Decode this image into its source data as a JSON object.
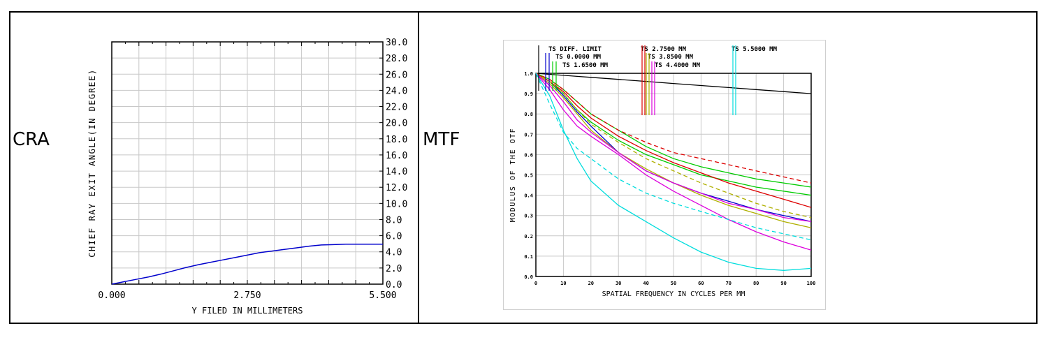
{
  "labels": {
    "cra": "CRA",
    "mtf": "MTF"
  },
  "chart_data": [
    {
      "type": "line",
      "xlabel": "Y FILED IN MILLIMETERS",
      "ylabel": "CHIEF RAY EXIT ANGLE(IN DEGREE)",
      "xlim": [
        0,
        5.5
      ],
      "ylim": [
        0,
        30
      ],
      "x_ticklabels": [
        "0.000",
        "2.750",
        "5.500"
      ],
      "y_ticks": [
        0,
        2,
        4,
        6,
        8,
        10,
        12,
        14,
        16,
        18,
        20,
        22,
        24,
        26,
        28,
        30
      ],
      "y_ticklabels": [
        "0.0",
        "2.0",
        "4.0",
        "6.0",
        "8.0",
        "10.0",
        "12.0",
        "14.0",
        "16.0",
        "18.0",
        "20.0",
        "22.0",
        "24.0",
        "26.0",
        "28.0",
        "30.0"
      ],
      "grid": true,
      "series": [
        {
          "color": "#0000cc",
          "x": [
            0,
            0.25,
            0.5,
            0.75,
            1.0,
            1.25,
            1.5,
            1.75,
            2.0,
            2.25,
            2.5,
            2.75,
            3.0,
            3.25,
            3.5,
            3.75,
            4.0,
            4.25,
            4.5,
            4.75,
            5.0,
            5.25,
            5.5
          ],
          "y": [
            0,
            0.3,
            0.6,
            0.9,
            1.25,
            1.65,
            2.05,
            2.4,
            2.7,
            3.0,
            3.3,
            3.6,
            3.9,
            4.1,
            4.3,
            4.5,
            4.7,
            4.85,
            4.9,
            4.95,
            4.95,
            4.95,
            4.95
          ]
        }
      ]
    },
    {
      "type": "line",
      "xlabel": "SPATIAL FREQUENCY IN CYCLES PER MM",
      "ylabel": "MODULUS OF THE OTF",
      "xlim": [
        0,
        100
      ],
      "ylim": [
        0,
        1
      ],
      "x_ticks": [
        0,
        10,
        20,
        30,
        40,
        50,
        60,
        70,
        80,
        90,
        100
      ],
      "x_ticklabels": [
        "0",
        "10",
        "20",
        "30",
        "40",
        "50",
        "60",
        "70",
        "80",
        "90",
        "100"
      ],
      "y_ticks": [
        0.1,
        0.2,
        0.3,
        0.4,
        0.5,
        0.6,
        0.7,
        0.8,
        0.9,
        1.0
      ],
      "y_ticklabels": [
        "0.1",
        "0.2",
        "0.3",
        "0.4",
        "0.5",
        "0.6",
        "0.7",
        "0.8",
        "0.9",
        "1.0"
      ],
      "origin_label": "0.0",
      "grid": true,
      "legend": [
        {
          "label": "TS DIFF. LIMIT",
          "color": "#000000"
        },
        {
          "label": "TS 0.0000 MM",
          "color": "#0000cc"
        },
        {
          "label": "TS 1.6500 MM",
          "color": "#00cc00"
        },
        {
          "label": "TS 2.7500 MM",
          "color": "#dd0000"
        },
        {
          "label": "TS 3.8500 MM",
          "color": "#b0b000"
        },
        {
          "label": "TS 4.4000 MM",
          "color": "#dd00dd"
        },
        {
          "label": "TS 5.5000 MM",
          "color": "#00dddd"
        }
      ],
      "x": [
        0,
        5,
        10,
        15,
        20,
        30,
        40,
        50,
        60,
        70,
        80,
        90,
        100
      ],
      "series": [
        {
          "color": "#000000",
          "dash": false,
          "y": [
            1.0,
            0.995,
            0.99,
            0.985,
            0.98,
            0.97,
            0.96,
            0.95,
            0.94,
            0.93,
            0.92,
            0.91,
            0.9
          ]
        },
        {
          "color": "#0000cc",
          "dash": false,
          "y": [
            1.0,
            0.96,
            0.89,
            0.81,
            0.74,
            0.61,
            0.52,
            0.46,
            0.41,
            0.37,
            0.33,
            0.3,
            0.27
          ]
        },
        {
          "color": "#00cc00",
          "dash": false,
          "y": [
            1.0,
            0.97,
            0.92,
            0.86,
            0.8,
            0.72,
            0.64,
            0.58,
            0.54,
            0.51,
            0.48,
            0.46,
            0.44
          ]
        },
        {
          "color": "#00cc00",
          "dash": false,
          "y": [
            1.0,
            0.96,
            0.9,
            0.82,
            0.76,
            0.67,
            0.6,
            0.55,
            0.5,
            0.47,
            0.44,
            0.42,
            0.4
          ]
        },
        {
          "color": "#dd0000",
          "dash": false,
          "y": [
            1.0,
            0.96,
            0.91,
            0.84,
            0.78,
            0.69,
            0.62,
            0.56,
            0.51,
            0.46,
            0.42,
            0.38,
            0.34
          ]
        },
        {
          "color": "#dd0000",
          "dash": true,
          "y": [
            1.0,
            0.97,
            0.92,
            0.86,
            0.8,
            0.72,
            0.66,
            0.61,
            0.58,
            0.55,
            0.52,
            0.49,
            0.46
          ]
        },
        {
          "color": "#b0b000",
          "dash": false,
          "y": [
            1.0,
            0.95,
            0.88,
            0.8,
            0.72,
            0.61,
            0.53,
            0.46,
            0.4,
            0.35,
            0.31,
            0.27,
            0.24
          ]
        },
        {
          "color": "#b0b000",
          "dash": true,
          "y": [
            1.0,
            0.96,
            0.9,
            0.82,
            0.75,
            0.66,
            0.58,
            0.52,
            0.46,
            0.41,
            0.36,
            0.32,
            0.29
          ]
        },
        {
          "color": "#dd00dd",
          "dash": false,
          "y": [
            1.0,
            0.94,
            0.86,
            0.77,
            0.71,
            0.61,
            0.52,
            0.46,
            0.41,
            0.36,
            0.33,
            0.29,
            0.27
          ]
        },
        {
          "color": "#dd00dd",
          "dash": false,
          "y": [
            1.0,
            0.92,
            0.82,
            0.74,
            0.69,
            0.6,
            0.5,
            0.42,
            0.35,
            0.28,
            0.22,
            0.17,
            0.13
          ]
        },
        {
          "color": "#00dddd",
          "dash": false,
          "y": [
            1.0,
            0.89,
            0.72,
            0.58,
            0.47,
            0.35,
            0.27,
            0.19,
            0.12,
            0.07,
            0.04,
            0.03,
            0.04
          ]
        },
        {
          "color": "#00dddd",
          "dash": true,
          "y": [
            1.0,
            0.85,
            0.71,
            0.63,
            0.58,
            0.48,
            0.41,
            0.36,
            0.32,
            0.28,
            0.24,
            0.21,
            0.18
          ]
        }
      ]
    }
  ]
}
